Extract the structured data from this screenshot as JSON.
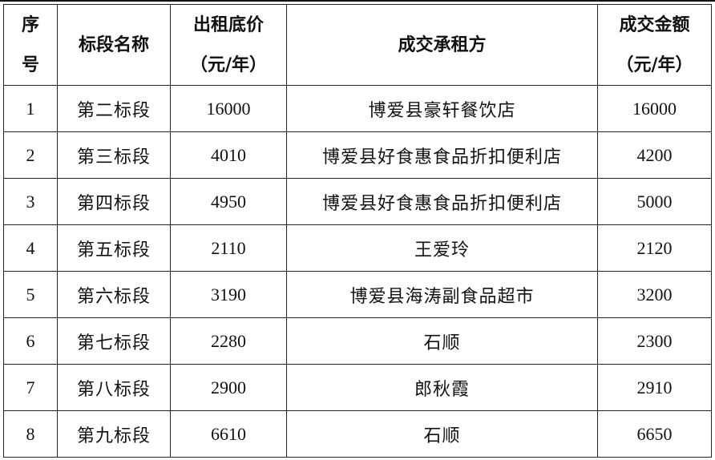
{
  "table": {
    "headers": [
      {
        "lines": [
          "序",
          "号"
        ]
      },
      {
        "lines": [
          "标段名称"
        ]
      },
      {
        "lines": [
          "出租底价",
          "（元/年）"
        ]
      },
      {
        "lines": [
          "成交承租方"
        ]
      },
      {
        "lines": [
          "成交金额",
          "（元/年）"
        ]
      }
    ],
    "rows": [
      [
        "1",
        "第二标段",
        "16000",
        "博爱县豪轩餐饮店",
        "16000"
      ],
      [
        "2",
        "第三标段",
        "4010",
        "博爱县好食惠食品折扣便利店",
        "4200"
      ],
      [
        "3",
        "第四标段",
        "4950",
        "博爱县好食惠食品折扣便利店",
        "5000"
      ],
      [
        "4",
        "第五标段",
        "2110",
        "王爱玲",
        "2120"
      ],
      [
        "5",
        "第六标段",
        "3190",
        "博爱县海涛副食品超市",
        "3200"
      ],
      [
        "6",
        "第七标段",
        "2280",
        "石顺",
        "2300"
      ],
      [
        "7",
        "第八标段",
        "2900",
        "郎秋霞",
        "2910"
      ],
      [
        "8",
        "第九标段",
        "6610",
        "石顺",
        "6650"
      ]
    ]
  }
}
